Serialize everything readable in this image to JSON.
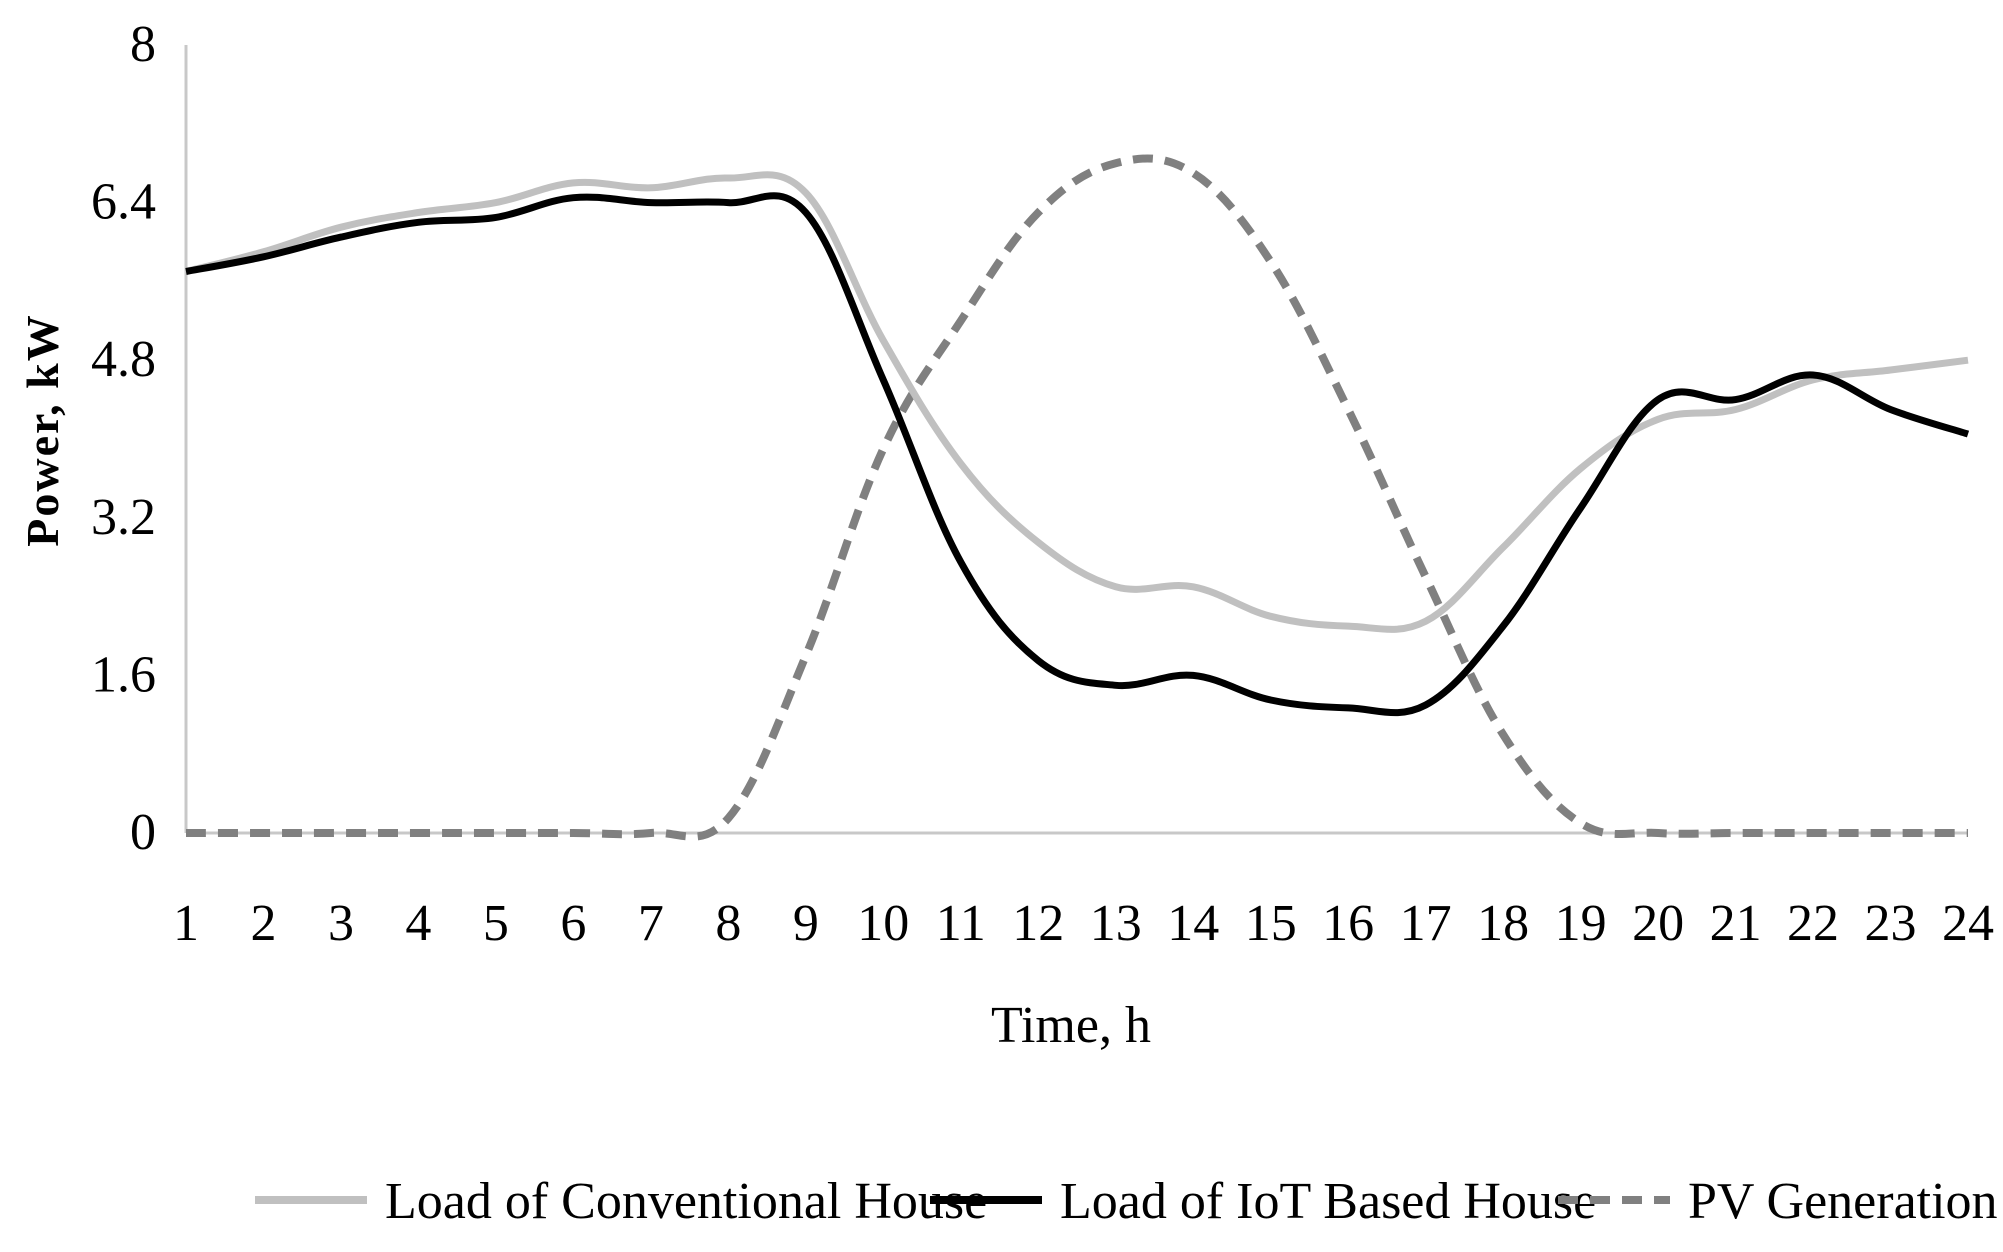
{
  "chart_data": {
    "type": "line",
    "title": "",
    "xlabel": "Time, h",
    "ylabel": "Power, kW",
    "x": [
      1,
      2,
      3,
      4,
      5,
      6,
      7,
      8,
      9,
      10,
      11,
      12,
      13,
      14,
      15,
      16,
      17,
      18,
      19,
      20,
      21,
      22,
      23,
      24
    ],
    "x_ticks": [
      "1",
      "2",
      "3",
      "4",
      "5",
      "6",
      "7",
      "8",
      "9",
      "10",
      "11",
      "12",
      "13",
      "14",
      "15",
      "16",
      "17",
      "18",
      "19",
      "20",
      "21",
      "22",
      "23",
      "24"
    ],
    "y_ticks": [
      "0",
      "1.6",
      "3.2",
      "4.8",
      "6.4",
      "8"
    ],
    "ylim": [
      0,
      8
    ],
    "xlim": [
      1,
      24
    ],
    "grid": false,
    "legend_position": "bottom",
    "series": [
      {
        "name": "Load of Conventional House",
        "color": "#c0c0c0",
        "style": "solid",
        "values": [
          5.7,
          5.9,
          6.15,
          6.3,
          6.4,
          6.6,
          6.55,
          6.65,
          6.5,
          5.0,
          3.75,
          2.95,
          2.5,
          2.5,
          2.2,
          2.1,
          2.15,
          2.9,
          3.7,
          4.2,
          4.3,
          4.6,
          4.7,
          4.8
        ]
      },
      {
        "name": "Load of IoT Based House",
        "color": "#000000",
        "style": "solid",
        "values": [
          5.7,
          5.85,
          6.05,
          6.2,
          6.25,
          6.45,
          6.4,
          6.4,
          6.3,
          4.6,
          2.75,
          1.75,
          1.5,
          1.6,
          1.35,
          1.27,
          1.3,
          2.1,
          3.3,
          4.4,
          4.4,
          4.65,
          4.3,
          4.05
        ]
      },
      {
        "name": "PV Generation",
        "color": "#808080",
        "style": "dashed",
        "values": [
          0,
          0,
          0,
          0,
          0,
          0,
          0,
          0.15,
          1.8,
          3.9,
          5.2,
          6.3,
          6.8,
          6.7,
          5.8,
          4.3,
          2.6,
          1.0,
          0.1,
          0,
          0,
          0,
          0,
          0
        ]
      }
    ]
  }
}
